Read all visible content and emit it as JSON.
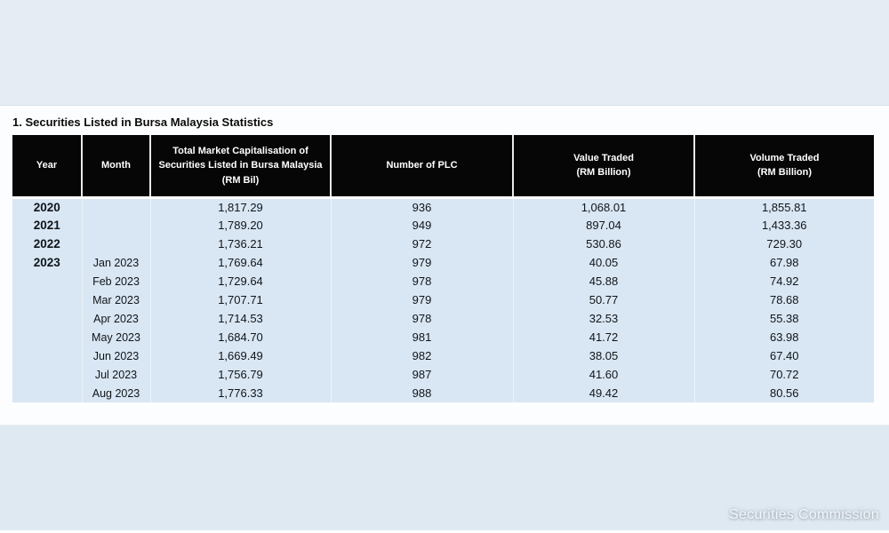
{
  "page": {
    "title": "1. Securities Listed in Bursa Malaysia Statistics",
    "watermark": "Securities Commission"
  },
  "colors": {
    "page_bg": "#fcfdfe",
    "top_band": "#e5ecf4",
    "bottom_band": "#dfe9f1",
    "header_bg": "#060606",
    "header_text": "#ffffff",
    "cell_bg": "#d9e6f3",
    "body_text": "#10151a"
  },
  "table": {
    "columns": [
      {
        "key": "year",
        "label": "Year"
      },
      {
        "key": "month",
        "label": "Month"
      },
      {
        "key": "market-cap",
        "label": "Total Market Capitalisation of\nSecurities Listed in Bursa Malaysia\n(RM Bil)"
      },
      {
        "key": "num-plc",
        "label": "Number of PLC"
      },
      {
        "key": "value-traded",
        "label": "Value Traded\n(RM Billion)"
      },
      {
        "key": "volume-traded",
        "label": "Volume Traded\n(RM Billion)"
      }
    ],
    "rows": [
      {
        "cells": [
          "2020",
          "",
          "1,817.29",
          "936",
          "1,068.01",
          "1,855.81"
        ]
      },
      {
        "cells": [
          "2021",
          "",
          "1,789.20",
          "949",
          "897.04",
          "1,433.36"
        ]
      },
      {
        "cells": [
          "2022",
          "",
          "1,736.21",
          "972",
          "530.86",
          "729.30"
        ]
      },
      {
        "cells": [
          "2023",
          "Jan 2023",
          "1,769.64",
          "979",
          "40.05",
          "67.98"
        ]
      },
      {
        "cells": [
          "",
          "Feb 2023",
          "1,729.64",
          "978",
          "45.88",
          "74.92"
        ]
      },
      {
        "cells": [
          "",
          "Mar 2023",
          "1,707.71",
          "979",
          "50.77",
          "78.68"
        ]
      },
      {
        "cells": [
          "",
          "Apr 2023",
          "1,714.53",
          "978",
          "32.53",
          "55.38"
        ]
      },
      {
        "cells": [
          "",
          "May 2023",
          "1,684.70",
          "981",
          "41.72",
          "63.98"
        ]
      },
      {
        "cells": [
          "",
          "Jun 2023",
          "1,669.49",
          "982",
          "38.05",
          "67.40"
        ]
      },
      {
        "cells": [
          "",
          "Jul 2023",
          "1,756.79",
          "987",
          "41.60",
          "70.72"
        ]
      },
      {
        "cells": [
          "",
          "Aug 2023",
          "1,776.33",
          "988",
          "49.42",
          "80.56"
        ]
      }
    ]
  }
}
